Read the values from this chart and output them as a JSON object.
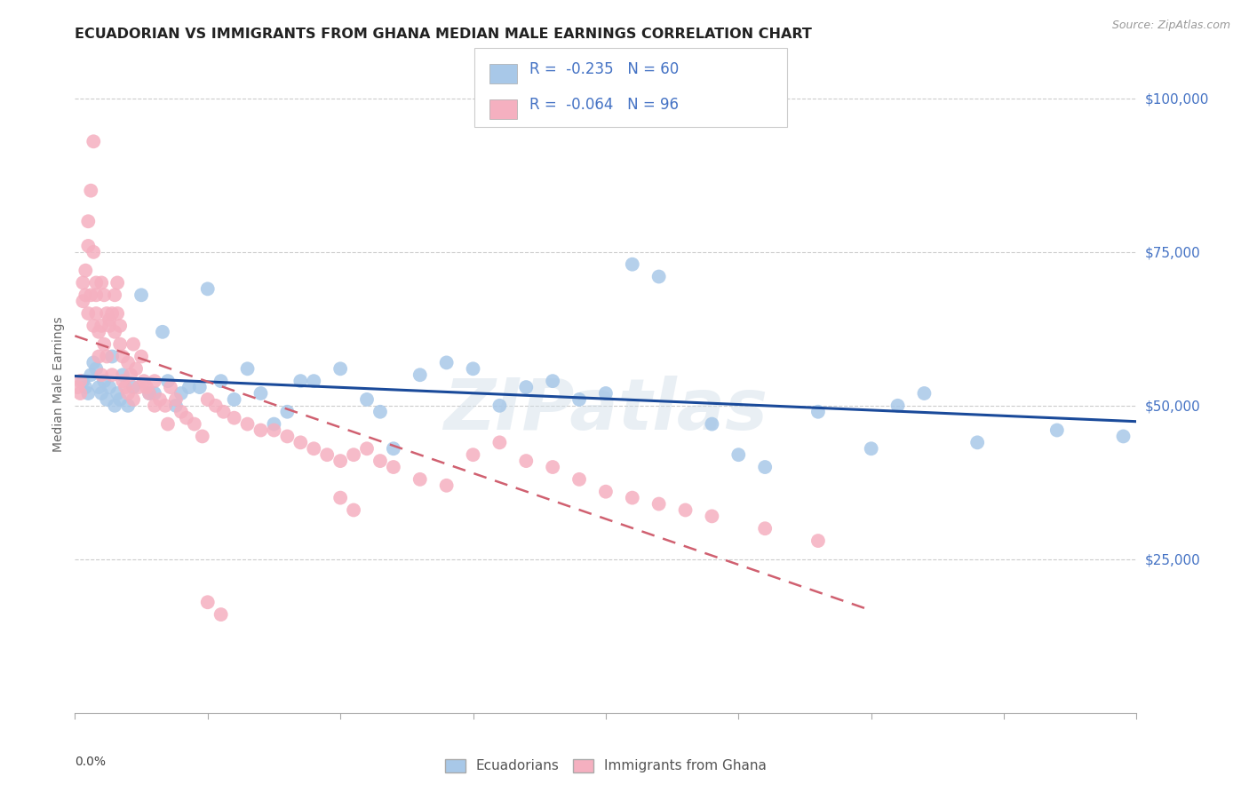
{
  "title": "ECUADORIAN VS IMMIGRANTS FROM GHANA MEDIAN MALE EARNINGS CORRELATION CHART",
  "source": "Source: ZipAtlas.com",
  "ylabel": "Median Male Earnings",
  "yticks": [
    0,
    25000,
    50000,
    75000,
    100000
  ],
  "xmin": 0.0,
  "xmax": 0.4,
  "ymin": 0,
  "ymax": 107000,
  "blue_R": -0.235,
  "blue_N": 60,
  "pink_R": -0.064,
  "pink_N": 96,
  "legend_label_blue": "Ecuadorians",
  "legend_label_pink": "Immigrants from Ghana",
  "watermark": "ZIPatlas",
  "blue_color": "#a8c8e8",
  "pink_color": "#f5b0c0",
  "blue_line_color": "#1a4a9a",
  "pink_line_color": "#d06070",
  "title_color": "#222222",
  "right_tick_color": "#4472c4",
  "background_color": "#ffffff",
  "blue_scatter_x": [
    0.003,
    0.004,
    0.005,
    0.006,
    0.007,
    0.008,
    0.009,
    0.01,
    0.011,
    0.012,
    0.013,
    0.014,
    0.015,
    0.016,
    0.017,
    0.018,
    0.02,
    0.022,
    0.025,
    0.028,
    0.03,
    0.033,
    0.035,
    0.038,
    0.04,
    0.043,
    0.047,
    0.05,
    0.055,
    0.06,
    0.065,
    0.07,
    0.075,
    0.08,
    0.085,
    0.09,
    0.1,
    0.11,
    0.115,
    0.12,
    0.13,
    0.14,
    0.15,
    0.16,
    0.17,
    0.18,
    0.19,
    0.2,
    0.21,
    0.22,
    0.24,
    0.25,
    0.26,
    0.28,
    0.3,
    0.31,
    0.32,
    0.34,
    0.37,
    0.395
  ],
  "blue_scatter_y": [
    54000,
    53000,
    52000,
    55000,
    57000,
    56000,
    53000,
    52000,
    54000,
    51000,
    53000,
    58000,
    50000,
    52000,
    51000,
    55000,
    50000,
    53000,
    68000,
    52000,
    52000,
    62000,
    54000,
    50000,
    52000,
    53000,
    53000,
    69000,
    54000,
    51000,
    56000,
    52000,
    47000,
    49000,
    54000,
    54000,
    56000,
    51000,
    49000,
    43000,
    55000,
    57000,
    56000,
    50000,
    53000,
    54000,
    51000,
    52000,
    73000,
    71000,
    47000,
    42000,
    40000,
    49000,
    43000,
    50000,
    52000,
    44000,
    46000,
    45000
  ],
  "pink_scatter_x": [
    0.001,
    0.002,
    0.002,
    0.003,
    0.003,
    0.004,
    0.004,
    0.005,
    0.005,
    0.005,
    0.006,
    0.006,
    0.007,
    0.007,
    0.007,
    0.008,
    0.008,
    0.008,
    0.009,
    0.009,
    0.01,
    0.01,
    0.01,
    0.011,
    0.011,
    0.012,
    0.012,
    0.013,
    0.013,
    0.014,
    0.014,
    0.015,
    0.015,
    0.016,
    0.016,
    0.017,
    0.017,
    0.018,
    0.018,
    0.019,
    0.02,
    0.02,
    0.021,
    0.022,
    0.022,
    0.023,
    0.024,
    0.025,
    0.026,
    0.027,
    0.028,
    0.03,
    0.032,
    0.034,
    0.036,
    0.038,
    0.04,
    0.042,
    0.045,
    0.048,
    0.05,
    0.053,
    0.056,
    0.06,
    0.065,
    0.07,
    0.075,
    0.08,
    0.085,
    0.09,
    0.095,
    0.1,
    0.105,
    0.11,
    0.115,
    0.12,
    0.13,
    0.14,
    0.15,
    0.16,
    0.17,
    0.18,
    0.19,
    0.2,
    0.21,
    0.22,
    0.23,
    0.24,
    0.26,
    0.28,
    0.1,
    0.105,
    0.05,
    0.055,
    0.03,
    0.035
  ],
  "pink_scatter_y": [
    53000,
    52000,
    54000,
    67000,
    70000,
    68000,
    72000,
    65000,
    76000,
    80000,
    85000,
    68000,
    93000,
    75000,
    63000,
    70000,
    68000,
    65000,
    62000,
    58000,
    63000,
    70000,
    55000,
    68000,
    60000,
    65000,
    58000,
    64000,
    63000,
    55000,
    65000,
    68000,
    62000,
    65000,
    70000,
    63000,
    60000,
    58000,
    54000,
    53000,
    57000,
    52000,
    55000,
    60000,
    51000,
    56000,
    53000,
    58000,
    54000,
    53000,
    52000,
    54000,
    51000,
    50000,
    53000,
    51000,
    49000,
    48000,
    47000,
    45000,
    51000,
    50000,
    49000,
    48000,
    47000,
    46000,
    46000,
    45000,
    44000,
    43000,
    42000,
    41000,
    42000,
    43000,
    41000,
    40000,
    38000,
    37000,
    42000,
    44000,
    41000,
    40000,
    38000,
    36000,
    35000,
    34000,
    33000,
    32000,
    30000,
    28000,
    35000,
    33000,
    18000,
    16000,
    50000,
    47000
  ]
}
